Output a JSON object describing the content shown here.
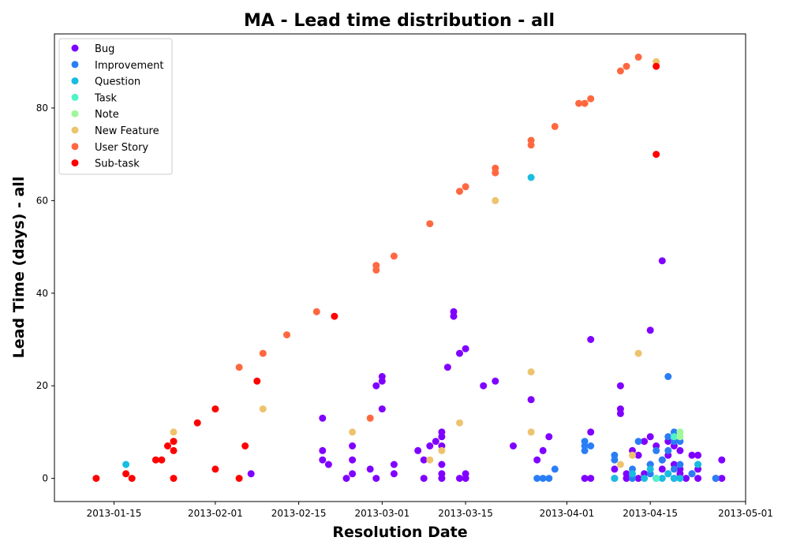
{
  "chart_data": {
    "type": "scatter",
    "title": "MA - Lead time distribution - all",
    "xlabel": "Resolution Date",
    "ylabel": "Lead Time (days) - all",
    "xlim": [
      "2013-01-05",
      "2013-05-01"
    ],
    "ylim": [
      -5,
      96
    ],
    "x_ticks": [
      "2013-01-15",
      "2013-02-01",
      "2013-02-15",
      "2013-03-01",
      "2013-03-15",
      "2013-04-01",
      "2013-04-15",
      "2013-05-01"
    ],
    "y_ticks": [
      0,
      20,
      40,
      60,
      80
    ],
    "grid": false,
    "legend_position": "top-left",
    "series": [
      {
        "name": "Bug",
        "color": "#8000ff",
        "points": [
          [
            "2013-02-07",
            1
          ],
          [
            "2013-02-19",
            13
          ],
          [
            "2013-02-19",
            6
          ],
          [
            "2013-02-19",
            4
          ],
          [
            "2013-02-20",
            3
          ],
          [
            "2013-02-23",
            0
          ],
          [
            "2013-02-24",
            7
          ],
          [
            "2013-02-24",
            4
          ],
          [
            "2013-02-24",
            1
          ],
          [
            "2013-02-27",
            2
          ],
          [
            "2013-02-28",
            20
          ],
          [
            "2013-02-28",
            0
          ],
          [
            "2013-03-01",
            22
          ],
          [
            "2013-03-01",
            21
          ],
          [
            "2013-03-01",
            15
          ],
          [
            "2013-03-03",
            3
          ],
          [
            "2013-03-03",
            1
          ],
          [
            "2013-03-07",
            6
          ],
          [
            "2013-03-08",
            4
          ],
          [
            "2013-03-08",
            0
          ],
          [
            "2013-03-09",
            7
          ],
          [
            "2013-03-10",
            8
          ],
          [
            "2013-03-11",
            10
          ],
          [
            "2013-03-11",
            9
          ],
          [
            "2013-03-11",
            7
          ],
          [
            "2013-03-11",
            3
          ],
          [
            "2013-03-11",
            1
          ],
          [
            "2013-03-11",
            0
          ],
          [
            "2013-03-12",
            24
          ],
          [
            "2013-03-13",
            36
          ],
          [
            "2013-03-13",
            35
          ],
          [
            "2013-03-14",
            27
          ],
          [
            "2013-03-14",
            0
          ],
          [
            "2013-03-15",
            28
          ],
          [
            "2013-03-15",
            1
          ],
          [
            "2013-03-15",
            0
          ],
          [
            "2013-03-18",
            20
          ],
          [
            "2013-03-20",
            21
          ],
          [
            "2013-03-23",
            7
          ],
          [
            "2013-03-26",
            17
          ],
          [
            "2013-03-27",
            4
          ],
          [
            "2013-03-28",
            6
          ],
          [
            "2013-03-29",
            9
          ],
          [
            "2013-04-04",
            0
          ],
          [
            "2013-04-05",
            10
          ],
          [
            "2013-04-05",
            30
          ],
          [
            "2013-04-05",
            0
          ],
          [
            "2013-04-09",
            2
          ],
          [
            "2013-04-09",
            0
          ],
          [
            "2013-04-10",
            15
          ],
          [
            "2013-04-10",
            14
          ],
          [
            "2013-04-10",
            20
          ],
          [
            "2013-04-11",
            0
          ],
          [
            "2013-04-11",
            1
          ],
          [
            "2013-04-12",
            6
          ],
          [
            "2013-04-13",
            5
          ],
          [
            "2013-04-13",
            0
          ],
          [
            "2013-04-14",
            8
          ],
          [
            "2013-04-14",
            1
          ],
          [
            "2013-04-15",
            32
          ],
          [
            "2013-04-15",
            9
          ],
          [
            "2013-04-15",
            3
          ],
          [
            "2013-04-16",
            7
          ],
          [
            "2013-04-16",
            0
          ],
          [
            "2013-04-17",
            47
          ],
          [
            "2013-04-17",
            4
          ],
          [
            "2013-04-17",
            2
          ],
          [
            "2013-04-18",
            8
          ],
          [
            "2013-04-18",
            5
          ],
          [
            "2013-04-18",
            1
          ],
          [
            "2013-04-19",
            7
          ],
          [
            "2013-04-19",
            3
          ],
          [
            "2013-04-19",
            0
          ],
          [
            "2013-04-20",
            6
          ],
          [
            "2013-04-20",
            2
          ],
          [
            "2013-04-20",
            1
          ],
          [
            "2013-04-21",
            0
          ],
          [
            "2013-04-22",
            5
          ],
          [
            "2013-04-22",
            1
          ],
          [
            "2013-04-23",
            5
          ],
          [
            "2013-04-23",
            2
          ],
          [
            "2013-04-23",
            0
          ],
          [
            "2013-04-26",
            0
          ],
          [
            "2013-04-27",
            4
          ],
          [
            "2013-04-27",
            0
          ]
        ]
      },
      {
        "name": "Improvement",
        "color": "#2a7ef5",
        "points": [
          [
            "2013-03-27",
            0
          ],
          [
            "2013-03-28",
            0
          ],
          [
            "2013-03-29",
            0
          ],
          [
            "2013-03-30",
            2
          ],
          [
            "2013-04-04",
            8
          ],
          [
            "2013-04-04",
            7
          ],
          [
            "2013-04-04",
            6
          ],
          [
            "2013-04-05",
            7
          ],
          [
            "2013-04-09",
            5
          ],
          [
            "2013-04-09",
            4
          ],
          [
            "2013-04-12",
            2
          ],
          [
            "2013-04-12",
            0
          ],
          [
            "2013-04-13",
            8
          ],
          [
            "2013-04-15",
            3
          ],
          [
            "2013-04-15",
            1
          ],
          [
            "2013-04-16",
            6
          ],
          [
            "2013-04-17",
            4
          ],
          [
            "2013-04-18",
            22
          ],
          [
            "2013-04-18",
            9
          ],
          [
            "2013-04-18",
            6
          ],
          [
            "2013-04-19",
            10
          ],
          [
            "2013-04-19",
            8
          ],
          [
            "2013-04-19",
            2
          ],
          [
            "2013-04-20",
            8
          ],
          [
            "2013-04-20",
            3
          ],
          [
            "2013-04-22",
            1
          ],
          [
            "2013-04-23",
            3
          ],
          [
            "2013-04-26",
            0
          ]
        ]
      },
      {
        "name": "Question",
        "color": "#18bde0",
        "points": [
          [
            "2013-01-17",
            3
          ],
          [
            "2013-03-26",
            65
          ],
          [
            "2013-04-09",
            0
          ],
          [
            "2013-04-12",
            1
          ],
          [
            "2013-04-14",
            0
          ],
          [
            "2013-04-15",
            2
          ],
          [
            "2013-04-17",
            0
          ],
          [
            "2013-04-18",
            1
          ],
          [
            "2013-04-19",
            0
          ],
          [
            "2013-04-20",
            0
          ],
          [
            "2013-04-23",
            3
          ]
        ]
      },
      {
        "name": "Task",
        "color": "#4ef4c8",
        "points": [
          [
            "2013-04-16",
            0
          ],
          [
            "2013-04-19",
            9
          ]
        ]
      },
      {
        "name": "Note",
        "color": "#9ef79a",
        "points": [
          [
            "2013-04-20",
            10
          ],
          [
            "2013-04-20",
            9
          ]
        ]
      },
      {
        "name": "New Feature",
        "color": "#edc36e",
        "points": [
          [
            "2013-01-25",
            10
          ],
          [
            "2013-02-09",
            15
          ],
          [
            "2013-02-24",
            10
          ],
          [
            "2013-03-09",
            4
          ],
          [
            "2013-03-11",
            6
          ],
          [
            "2013-03-14",
            12
          ],
          [
            "2013-03-20",
            60
          ],
          [
            "2013-03-26",
            23
          ],
          [
            "2013-03-26",
            10
          ],
          [
            "2013-04-10",
            3
          ],
          [
            "2013-04-12",
            5
          ],
          [
            "2013-04-13",
            27
          ],
          [
            "2013-04-16",
            90
          ]
        ]
      },
      {
        "name": "User Story",
        "color": "#ff6840",
        "points": [
          [
            "2013-01-25",
            8
          ],
          [
            "2013-02-05",
            24
          ],
          [
            "2013-02-09",
            27
          ],
          [
            "2013-02-13",
            31
          ],
          [
            "2013-02-18",
            36
          ],
          [
            "2013-02-27",
            13
          ],
          [
            "2013-02-28",
            46
          ],
          [
            "2013-02-28",
            45
          ],
          [
            "2013-03-03",
            48
          ],
          [
            "2013-03-09",
            55
          ],
          [
            "2013-03-14",
            62
          ],
          [
            "2013-03-15",
            63
          ],
          [
            "2013-03-20",
            67
          ],
          [
            "2013-03-20",
            66
          ],
          [
            "2013-03-26",
            73
          ],
          [
            "2013-03-26",
            72
          ],
          [
            "2013-03-30",
            76
          ],
          [
            "2013-04-03",
            81
          ],
          [
            "2013-04-04",
            81
          ],
          [
            "2013-04-05",
            82
          ],
          [
            "2013-04-10",
            88
          ],
          [
            "2013-04-11",
            89
          ],
          [
            "2013-04-13",
            91
          ]
        ]
      },
      {
        "name": "Sub-task",
        "color": "#ff0000",
        "points": [
          [
            "2013-01-12",
            0
          ],
          [
            "2013-01-17",
            1
          ],
          [
            "2013-01-18",
            0
          ],
          [
            "2013-01-22",
            4
          ],
          [
            "2013-01-23",
            4
          ],
          [
            "2013-01-24",
            7
          ],
          [
            "2013-01-25",
            8
          ],
          [
            "2013-01-25",
            6
          ],
          [
            "2013-01-25",
            0
          ],
          [
            "2013-01-29",
            12
          ],
          [
            "2013-02-01",
            15
          ],
          [
            "2013-02-01",
            2
          ],
          [
            "2013-02-05",
            0
          ],
          [
            "2013-02-06",
            7
          ],
          [
            "2013-02-08",
            21
          ],
          [
            "2013-02-21",
            35
          ],
          [
            "2013-04-16",
            89
          ],
          [
            "2013-04-16",
            70
          ]
        ]
      }
    ]
  }
}
